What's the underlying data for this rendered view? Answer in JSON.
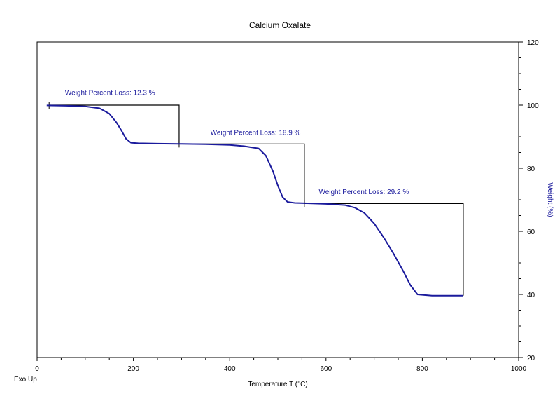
{
  "chart_data": {
    "type": "line",
    "title": "Calcium Oxalate",
    "xlabel": "Temperature T (°C)",
    "ylabel": "Weight (%)",
    "corner_label": "Exo Up",
    "xlim": [
      0,
      1000
    ],
    "ylim": [
      20,
      120
    ],
    "x_ticks": [
      0,
      200,
      400,
      600,
      800,
      1000
    ],
    "y_ticks": [
      20,
      40,
      60,
      80,
      100,
      120
    ],
    "grid": false,
    "colors": {
      "curve": "#1a1a9c",
      "annotation": "#1a1a9c",
      "steps": "#000000"
    },
    "series": [
      {
        "x": [
          20,
          60,
          100,
          130,
          150,
          165,
          175,
          185,
          195,
          210,
          250,
          300,
          350,
          400,
          430,
          460,
          475,
          490,
          500,
          510,
          520,
          535,
          555,
          600,
          640,
          660,
          680,
          700,
          720,
          740,
          760,
          775,
          790,
          820,
          860,
          885
        ],
        "y": [
          99.9,
          99.8,
          99.6,
          99.0,
          97.3,
          94.5,
          92.0,
          89.3,
          88.1,
          87.9,
          87.8,
          87.7,
          87.6,
          87.4,
          87.0,
          86.3,
          84.0,
          79.0,
          74.5,
          70.8,
          69.3,
          69.0,
          68.9,
          68.7,
          68.3,
          67.5,
          65.8,
          62.5,
          58.0,
          53.0,
          47.5,
          43.0,
          40.0,
          39.6,
          39.6,
          39.6
        ]
      }
    ],
    "annotations": [
      {
        "text": "Weight Percent Loss: 12.3 %",
        "x": 58,
        "y": 103.2,
        "start_x": 25,
        "end_x": 295,
        "top_y": 100.0,
        "bottom_y": 87.7
      },
      {
        "text": "Weight Percent Loss: 18.9 %",
        "x": 360,
        "y": 90.6,
        "start_x": 295,
        "end_x": 555,
        "top_y": 87.7,
        "bottom_y": 68.8
      },
      {
        "text": "Weight Percent Loss: 29.2 %",
        "x": 585,
        "y": 71.8,
        "start_x": 555,
        "end_x": 885,
        "top_y": 68.8,
        "bottom_y": 39.6
      }
    ]
  }
}
